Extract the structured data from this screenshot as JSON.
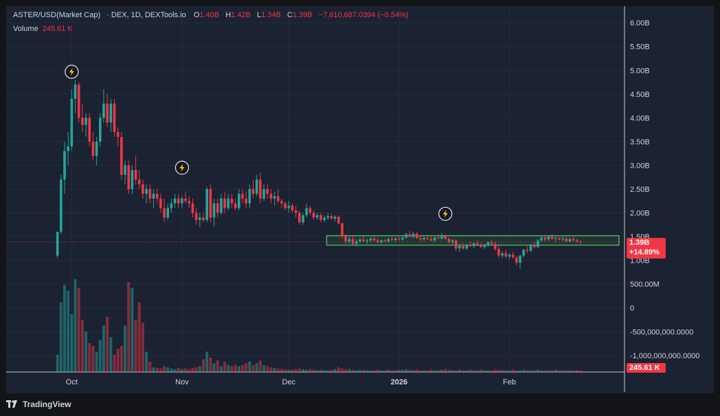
{
  "legend": {
    "symbol": "ASTER/USD(Market Cap)",
    "source": "· DEX, 1D, DEXTools.io",
    "o_label": "O",
    "o_value": "1.40B",
    "h_label": "H",
    "h_value": "1.42B",
    "l_label": "L",
    "l_value": "1.34B",
    "c_label": "C",
    "c_value": "1.39B",
    "change": "−7,610,687.0394 (−0.54%)"
  },
  "volume_legend": {
    "label": "Volume",
    "value": "245.61 K"
  },
  "price_tag": {
    "price": "1.39B",
    "change": "+14.89%"
  },
  "volume_tag": "245.61 K",
  "branding": {
    "name": "TradingView"
  },
  "colors": {
    "bg": "#1b2232",
    "up": "#26a69a",
    "down": "#f23645",
    "grid": "#252c3d",
    "zone": "#4caf50",
    "text": "#d1d4dc",
    "event": "#f5c518"
  },
  "icons": [
    "lightning-icon",
    "tradingview-logo-icon"
  ],
  "chart_data": {
    "type": "candlestick",
    "title": "ASTER/USD(Market Cap)",
    "y_ticks": [
      "6.00B",
      "5.50B",
      "5.00B",
      "4.50B",
      "4.00B",
      "3.50B",
      "3.00B",
      "2.50B",
      "2.00B",
      "1.50B",
      "1.00B",
      "500.00M",
      "0",
      "-500,000,000.0000",
      "-1,000,000,000.0000"
    ],
    "y_tick_values": [
      6.0,
      5.5,
      5.0,
      4.5,
      4.0,
      3.5,
      3.0,
      2.5,
      2.0,
      1.5,
      1.0,
      0.5,
      0,
      -0.5,
      -1.0
    ],
    "y_unit": "B",
    "ylim": [
      -1.35,
      6.35
    ],
    "x_ticks": [
      {
        "label": "Oct",
        "day": 13
      },
      {
        "label": "Nov",
        "day": 44
      },
      {
        "label": "Dec",
        "day": 74
      },
      {
        "label": "2026",
        "day": 105
      },
      {
        "label": "Feb",
        "day": 136
      }
    ],
    "x_range_days": [
      0,
      165
    ],
    "current_price": 1.39,
    "zone": {
      "from_day": 86,
      "to_day": 165,
      "low": 1.32,
      "high": 1.52
    },
    "events": [
      {
        "day": 13,
        "value": 4.97
      },
      {
        "day": 44,
        "value": 2.95
      },
      {
        "day": 118,
        "value": 1.98
      }
    ],
    "ohlc_day_start": 9,
    "ohlc": [
      [
        1.1,
        1.6,
        1.05,
        1.6
      ],
      [
        1.6,
        2.8,
        1.55,
        2.7
      ],
      [
        2.7,
        3.5,
        2.4,
        3.3
      ],
      [
        3.3,
        3.7,
        3.0,
        3.4
      ],
      [
        3.4,
        4.6,
        3.3,
        4.4
      ],
      [
        4.4,
        4.8,
        4.1,
        4.7
      ],
      [
        4.7,
        4.75,
        3.9,
        4.0
      ],
      [
        4.0,
        4.3,
        3.7,
        3.85
      ],
      [
        3.85,
        4.1,
        3.6,
        4.0
      ],
      [
        4.0,
        4.1,
        3.4,
        3.5
      ],
      [
        3.5,
        3.7,
        3.1,
        3.2
      ],
      [
        3.2,
        3.6,
        3.0,
        3.5
      ],
      [
        3.5,
        4.1,
        3.4,
        4.0
      ],
      [
        4.0,
        4.6,
        3.9,
        4.3
      ],
      [
        4.3,
        4.5,
        3.8,
        3.9
      ],
      [
        3.9,
        4.4,
        3.7,
        4.3
      ],
      [
        4.3,
        4.4,
        3.6,
        3.7
      ],
      [
        3.7,
        3.8,
        3.4,
        3.6
      ],
      [
        3.6,
        3.7,
        2.7,
        2.8
      ],
      [
        2.8,
        3.1,
        2.6,
        3.0
      ],
      [
        3.0,
        3.1,
        2.4,
        2.5
      ],
      [
        2.5,
        3.0,
        2.4,
        2.9
      ],
      [
        2.9,
        3.2,
        2.6,
        2.7
      ],
      [
        2.7,
        2.9,
        2.5,
        2.6
      ],
      [
        2.6,
        2.7,
        2.3,
        2.4
      ],
      [
        2.4,
        2.6,
        2.2,
        2.5
      ],
      [
        2.5,
        2.6,
        2.2,
        2.3
      ],
      [
        2.3,
        2.5,
        2.1,
        2.4
      ],
      [
        2.4,
        2.5,
        2.2,
        2.3
      ],
      [
        2.3,
        2.4,
        2.0,
        2.1
      ],
      [
        2.1,
        2.3,
        1.8,
        1.9
      ],
      [
        1.9,
        2.2,
        1.85,
        2.1
      ],
      [
        2.1,
        2.3,
        2.0,
        2.2
      ],
      [
        2.2,
        2.4,
        2.1,
        2.3
      ],
      [
        2.3,
        2.4,
        2.1,
        2.2
      ],
      [
        2.2,
        2.35,
        2.1,
        2.3
      ],
      [
        2.3,
        2.45,
        2.2,
        2.25
      ],
      [
        2.25,
        2.35,
        2.1,
        2.2
      ],
      [
        2.2,
        2.3,
        1.9,
        2.0
      ],
      [
        2.0,
        2.1,
        1.75,
        1.85
      ],
      [
        1.85,
        2.0,
        1.7,
        1.9
      ],
      [
        1.9,
        2.0,
        1.8,
        1.85
      ],
      [
        1.85,
        2.55,
        1.8,
        2.5
      ],
      [
        2.5,
        2.6,
        1.8,
        1.9
      ],
      [
        1.9,
        2.3,
        1.7,
        2.2
      ],
      [
        2.2,
        2.3,
        1.9,
        2.0
      ],
      [
        2.0,
        2.4,
        1.95,
        2.3
      ],
      [
        2.3,
        2.45,
        2.0,
        2.1
      ],
      [
        2.1,
        2.4,
        2.05,
        2.3
      ],
      [
        2.3,
        2.4,
        2.1,
        2.2
      ],
      [
        2.2,
        2.3,
        2.05,
        2.1
      ],
      [
        2.1,
        2.5,
        2.05,
        2.4
      ],
      [
        2.4,
        2.5,
        2.2,
        2.3
      ],
      [
        2.3,
        2.45,
        2.1,
        2.2
      ],
      [
        2.2,
        2.6,
        2.1,
        2.5
      ],
      [
        2.5,
        2.7,
        2.3,
        2.4
      ],
      [
        2.4,
        2.8,
        2.35,
        2.7
      ],
      [
        2.7,
        2.85,
        2.2,
        2.3
      ],
      [
        2.3,
        2.6,
        2.25,
        2.5
      ],
      [
        2.5,
        2.6,
        2.3,
        2.4
      ],
      [
        2.4,
        2.5,
        2.2,
        2.3
      ],
      [
        2.3,
        2.45,
        2.15,
        2.35
      ],
      [
        2.35,
        2.5,
        2.2,
        2.25
      ],
      [
        2.25,
        2.3,
        2.1,
        2.2
      ],
      [
        2.2,
        2.25,
        2.05,
        2.1
      ],
      [
        2.1,
        2.25,
        2.0,
        2.15
      ],
      [
        2.15,
        2.2,
        2.0,
        2.05
      ],
      [
        2.05,
        2.15,
        1.9,
        2.0
      ],
      [
        2.0,
        2.05,
        1.75,
        1.8
      ],
      [
        1.8,
        2.0,
        1.75,
        1.95
      ],
      [
        1.95,
        2.2,
        1.9,
        2.1
      ],
      [
        2.1,
        2.15,
        1.95,
        2.0
      ],
      [
        2.0,
        2.05,
        1.85,
        1.9
      ],
      [
        1.9,
        2.0,
        1.85,
        1.95
      ],
      [
        1.95,
        2.0,
        1.8,
        1.85
      ],
      [
        1.85,
        1.95,
        1.8,
        1.9
      ],
      [
        1.9,
        2.0,
        1.85,
        1.93
      ],
      [
        1.93,
        1.98,
        1.85,
        1.88
      ],
      [
        1.88,
        1.95,
        1.82,
        1.92
      ],
      [
        1.92,
        1.95,
        1.75,
        1.78
      ],
      [
        1.78,
        1.8,
        1.45,
        1.5
      ],
      [
        1.5,
        1.55,
        1.35,
        1.4
      ],
      [
        1.4,
        1.5,
        1.35,
        1.45
      ],
      [
        1.45,
        1.5,
        1.3,
        1.35
      ],
      [
        1.35,
        1.45,
        1.3,
        1.4
      ],
      [
        1.4,
        1.48,
        1.36,
        1.44
      ],
      [
        1.44,
        1.5,
        1.38,
        1.4
      ],
      [
        1.4,
        1.46,
        1.34,
        1.42
      ],
      [
        1.42,
        1.48,
        1.38,
        1.46
      ],
      [
        1.46,
        1.5,
        1.4,
        1.42
      ],
      [
        1.42,
        1.47,
        1.36,
        1.38
      ],
      [
        1.38,
        1.44,
        1.34,
        1.42
      ],
      [
        1.42,
        1.46,
        1.38,
        1.4
      ],
      [
        1.4,
        1.48,
        1.37,
        1.45
      ],
      [
        1.45,
        1.5,
        1.4,
        1.43
      ],
      [
        1.43,
        1.48,
        1.39,
        1.46
      ],
      [
        1.46,
        1.52,
        1.42,
        1.44
      ],
      [
        1.44,
        1.5,
        1.41,
        1.48
      ],
      [
        1.48,
        1.58,
        1.45,
        1.55
      ],
      [
        1.55,
        1.62,
        1.48,
        1.5
      ],
      [
        1.5,
        1.6,
        1.46,
        1.56
      ],
      [
        1.56,
        1.6,
        1.45,
        1.47
      ],
      [
        1.47,
        1.52,
        1.4,
        1.44
      ],
      [
        1.44,
        1.5,
        1.4,
        1.47
      ],
      [
        1.47,
        1.52,
        1.42,
        1.45
      ],
      [
        1.45,
        1.5,
        1.4,
        1.42
      ],
      [
        1.42,
        1.5,
        1.38,
        1.48
      ],
      [
        1.48,
        1.55,
        1.44,
        1.46
      ],
      [
        1.46,
        1.58,
        1.42,
        1.52
      ],
      [
        1.52,
        1.55,
        1.44,
        1.45
      ],
      [
        1.45,
        1.48,
        1.35,
        1.38
      ],
      [
        1.38,
        1.45,
        1.32,
        1.42
      ],
      [
        1.42,
        1.45,
        1.2,
        1.25
      ],
      [
        1.25,
        1.35,
        1.18,
        1.3
      ],
      [
        1.3,
        1.36,
        1.22,
        1.25
      ],
      [
        1.25,
        1.35,
        1.22,
        1.32
      ],
      [
        1.32,
        1.4,
        1.28,
        1.3
      ],
      [
        1.3,
        1.38,
        1.25,
        1.36
      ],
      [
        1.36,
        1.42,
        1.3,
        1.33
      ],
      [
        1.33,
        1.38,
        1.26,
        1.28
      ],
      [
        1.28,
        1.35,
        1.24,
        1.32
      ],
      [
        1.32,
        1.4,
        1.28,
        1.38
      ],
      [
        1.38,
        1.44,
        1.33,
        1.35
      ],
      [
        1.35,
        1.4,
        1.2,
        1.24
      ],
      [
        1.24,
        1.3,
        1.05,
        1.1
      ],
      [
        1.1,
        1.2,
        1.05,
        1.15
      ],
      [
        1.15,
        1.22,
        1.05,
        1.08
      ],
      [
        1.08,
        1.15,
        1.02,
        1.12
      ],
      [
        1.12,
        1.18,
        1.04,
        1.06
      ],
      [
        1.06,
        1.1,
        0.9,
        0.95
      ],
      [
        0.95,
        1.12,
        0.82,
        1.1
      ],
      [
        1.1,
        1.25,
        1.05,
        1.22
      ],
      [
        1.22,
        1.3,
        1.15,
        1.2
      ],
      [
        1.2,
        1.35,
        1.18,
        1.32
      ],
      [
        1.32,
        1.4,
        1.25,
        1.28
      ],
      [
        1.28,
        1.45,
        1.25,
        1.42
      ],
      [
        1.42,
        1.52,
        1.38,
        1.48
      ],
      [
        1.48,
        1.53,
        1.4,
        1.44
      ],
      [
        1.44,
        1.52,
        1.4,
        1.5
      ],
      [
        1.5,
        1.55,
        1.42,
        1.45
      ],
      [
        1.45,
        1.5,
        1.38,
        1.47
      ],
      [
        1.47,
        1.53,
        1.42,
        1.44
      ],
      [
        1.44,
        1.5,
        1.4,
        1.46
      ],
      [
        1.46,
        1.5,
        1.38,
        1.4
      ],
      [
        1.4,
        1.48,
        1.37,
        1.45
      ],
      [
        1.45,
        1.5,
        1.4,
        1.42
      ],
      [
        1.42,
        1.46,
        1.36,
        1.4
      ],
      [
        1.4,
        1.42,
        1.34,
        1.39
      ]
    ],
    "volume": [
      0.3,
      1.2,
      1.5,
      1.4,
      1.0,
      1.6,
      1.45,
      0.9,
      0.7,
      0.5,
      0.45,
      0.35,
      0.55,
      0.8,
      0.95,
      0.6,
      0.3,
      0.4,
      0.45,
      0.8,
      1.55,
      1.45,
      0.9,
      1.2,
      0.85,
      0.35,
      0.18,
      0.08,
      0.07,
      0.06,
      0.1,
      0.08,
      0.06,
      0.05,
      0.07,
      0.05,
      0.06,
      0.05,
      0.07,
      0.08,
      0.1,
      0.22,
      0.35,
      0.25,
      0.15,
      0.2,
      0.1,
      0.18,
      0.12,
      0.1,
      0.12,
      0.1,
      0.12,
      0.15,
      0.18,
      0.12,
      0.15,
      0.2,
      0.12,
      0.1,
      0.08,
      0.07,
      0.06,
      0.05,
      0.05,
      0.04,
      0.04,
      0.05,
      0.06,
      0.05,
      0.04,
      0.05,
      0.04,
      0.03,
      0.04,
      0.03,
      0.03,
      0.04,
      0.05,
      0.08,
      0.06,
      0.05,
      0.05,
      0.04,
      0.03,
      0.04,
      0.04,
      0.03,
      0.03,
      0.03,
      0.04,
      0.03,
      0.03,
      0.04,
      0.03,
      0.03,
      0.04,
      0.04,
      0.05,
      0.04,
      0.03,
      0.04,
      0.03,
      0.03,
      0.03,
      0.04,
      0.03,
      0.03,
      0.04,
      0.05,
      0.04,
      0.03,
      0.03,
      0.04,
      0.03,
      0.03,
      0.04,
      0.03,
      0.03,
      0.04,
      0.03,
      0.03,
      0.03,
      0.04,
      0.04,
      0.03,
      0.03,
      0.03,
      0.04,
      0.03,
      0.03,
      0.04,
      0.03,
      0.03,
      0.03,
      0.04,
      0.03,
      0.03,
      0.03,
      0.03,
      0.04,
      0.03,
      0.03,
      0.03,
      0.03,
      0.03,
      0.03,
      0.03
    ]
  }
}
